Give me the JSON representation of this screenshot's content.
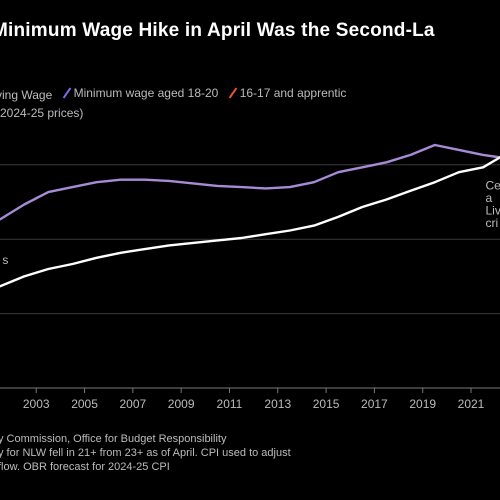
{
  "chart_data": {
    "type": "line",
    "title": "Minimum Wage Hike in April Was the Second-La",
    "subtitle": "(2024-25 prices)",
    "legend": [
      {
        "label": "ving Wage",
        "color": "#ffffff"
      },
      {
        "label": "Minimum wage aged 18-20",
        "color": "#7b6cf0"
      },
      {
        "label": "16-17 and apprentic",
        "color": "#e4572e"
      }
    ],
    "x_ticks": [
      "2003",
      "2005",
      "2007",
      "2009",
      "2011",
      "2013",
      "2015",
      "2017",
      "2019",
      "2021"
    ],
    "xlim": [
      2001.5,
      2022.2
    ],
    "ylim": [
      0,
      10
    ],
    "grid": true,
    "gridlines": [
      9,
      6,
      3
    ],
    "series": [
      {
        "name": "Minimum wage aged 18-20",
        "color": "#a78bd6",
        "x": [
          2001.5,
          2002.5,
          2003.5,
          2004.5,
          2005.5,
          2006.5,
          2007.5,
          2008.5,
          2009.5,
          2010.5,
          2011.5,
          2012.5,
          2013.5,
          2014.5,
          2015.5,
          2016.5,
          2017.5,
          2018.5,
          2019.5,
          2020.5,
          2021.5,
          2022.2
        ],
        "y": [
          6.8,
          7.4,
          7.9,
          8.1,
          8.3,
          8.4,
          8.4,
          8.35,
          8.25,
          8.15,
          8.1,
          8.05,
          8.1,
          8.3,
          8.7,
          8.9,
          9.1,
          9.4,
          9.8,
          9.6,
          9.4,
          9.3
        ]
      },
      {
        "name": "ving Wage",
        "color": "#ffffff",
        "x": [
          2001.5,
          2002.5,
          2003.5,
          2004.5,
          2005.5,
          2006.5,
          2007.5,
          2008.5,
          2009.5,
          2010.5,
          2011.5,
          2012.5,
          2013.5,
          2014.5,
          2015.5,
          2016.5,
          2017.5,
          2018.5,
          2019.5,
          2020.5,
          2021.5,
          2022.2
        ],
        "y": [
          4.1,
          4.5,
          4.8,
          5.0,
          5.25,
          5.45,
          5.6,
          5.75,
          5.85,
          5.95,
          6.05,
          6.2,
          6.35,
          6.55,
          6.9,
          7.3,
          7.6,
          7.95,
          8.3,
          8.7,
          8.9,
          9.3
        ]
      }
    ],
    "annotations": [
      {
        "text": "s",
        "x": 2001.6,
        "y": 5.0
      },
      {
        "text": "Ce",
        "x": 2021.6,
        "y": 8.0
      },
      {
        "text": "a",
        "x": 2021.6,
        "y": 7.5
      },
      {
        "text": "Liv",
        "x": 2021.6,
        "y": 7.0
      },
      {
        "text": "cri",
        "x": 2021.6,
        "y": 6.5
      }
    ]
  },
  "footer": {
    "line1": "y Commission, Office for Budget Responsibility",
    "line2": "y for NLW fell in 21+ from 23+ as of April. CPI used to adjust",
    "line3": "flow. OBR forecast for 2024-25 CPI"
  }
}
